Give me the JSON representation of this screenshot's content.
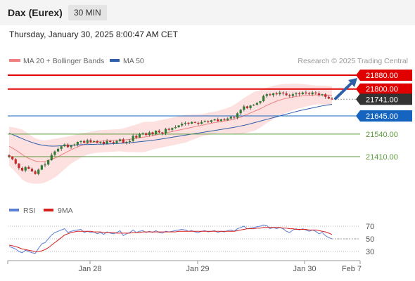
{
  "header": {
    "title": "Dax (Eurex)",
    "timeframe": "30 MIN",
    "datetime": "Thursday, January 30, 2025 8:00:47 AM CET"
  },
  "legend": {
    "ma20_label": "MA 20 + Bollinger Bands",
    "ma50_label": "MA 50",
    "watermark": "Research © 2025 Trading Central"
  },
  "rsi_legend": {
    "rsi_label": "RSI",
    "ma_label": "9MA"
  },
  "colors": {
    "bull": "#2e7d32",
    "bear": "#c62828",
    "ma20": "#f08080",
    "ma50": "#2e5fa8",
    "resistance": "#e00000",
    "pivot": "#1565c0",
    "support": "#5a9a3a",
    "current": "#333333",
    "rsi": "#5b7fd6",
    "rsi_ma": "#d62020",
    "band_fill": "#fde0e0"
  },
  "chart_data": [
    {
      "type": "candlestick",
      "title": "",
      "y_range": [
        21330,
        21910
      ],
      "x_ticks": [
        "Jan 28",
        "Jan 29",
        "Jan 30",
        "Feb 7"
      ],
      "levels": [
        {
          "name": "resistance 2",
          "value": 21880.0,
          "label": "21880.00",
          "style": "red-box"
        },
        {
          "name": "resistance 1",
          "value": 21800.0,
          "label": "21800.00",
          "style": "red-box"
        },
        {
          "name": "last price",
          "value": 21741.0,
          "label": "21741.00",
          "style": "dark-box"
        },
        {
          "name": "pivot",
          "value": 21645.0,
          "label": "21645.00",
          "style": "blue-box"
        },
        {
          "name": "support 1",
          "value": 21540.0,
          "label": "21540.00",
          "style": "green-text"
        },
        {
          "name": "support 2",
          "value": 21410.0,
          "label": "21410.00",
          "style": "green-text"
        }
      ],
      "series": [
        {
          "name": "MA 20 + Bollinger Bands",
          "kind": "ma20"
        },
        {
          "name": "MA 50",
          "kind": "ma50"
        }
      ],
      "closes": [
        21410,
        21395,
        21370,
        21345,
        21330,
        21350,
        21340,
        21325,
        21310,
        21335,
        21360,
        21365,
        21390,
        21420,
        21440,
        21455,
        21470,
        21480,
        21465,
        21475,
        21480,
        21495,
        21500,
        21490,
        21505,
        21495,
        21500,
        21490,
        21495,
        21485,
        21500,
        21495,
        21490,
        21500,
        21510,
        21490,
        21495,
        21500,
        21530,
        21520,
        21540,
        21545,
        21535,
        21550,
        21540,
        21560,
        21550,
        21545,
        21570,
        21565,
        21575,
        21580,
        21590,
        21600,
        21605,
        21600,
        21610,
        21605,
        21600,
        21610,
        21615,
        21610,
        21620,
        21625,
        21615,
        21625,
        21620,
        21630,
        21640,
        21635,
        21660,
        21680,
        21700,
        21690,
        21705,
        21710,
        21720,
        21730,
        21760,
        21770,
        21765,
        21775,
        21770,
        21780,
        21775,
        21765,
        21760,
        21770,
        21775,
        21770,
        21780,
        21775,
        21770,
        21780,
        21775,
        21765,
        21770,
        21755,
        21745,
        21741
      ],
      "ma20": [
        21470,
        21460,
        21448,
        21436,
        21422,
        21410,
        21400,
        21392,
        21385,
        21382,
        21381,
        21383,
        21388,
        21395,
        21402,
        21410,
        21420,
        21430,
        21440,
        21450,
        21458,
        21466,
        21474,
        21480,
        21486,
        21490,
        21494,
        21497,
        21499,
        21500,
        21501,
        21502,
        21503,
        21504,
        21505,
        21506,
        21508,
        21510,
        21513,
        21516,
        21519,
        21522,
        21525,
        21528,
        21531,
        21535,
        21539,
        21543,
        21547,
        21551,
        21555,
        21559,
        21563,
        21567,
        21571,
        21575,
        21579,
        21583,
        21587,
        21591,
        21595,
        21599,
        21603,
        21606,
        21609,
        21612,
        21615,
        21618,
        21622,
        21626,
        21632,
        21638,
        21646,
        21654,
        21662,
        21670,
        21678,
        21686,
        21696,
        21706,
        21714,
        21722,
        21730,
        21736,
        21742,
        21746,
        21750,
        21754,
        21757,
        21759,
        21761,
        21763,
        21764,
        21765,
        21766,
        21766,
        21766,
        21765,
        21764,
        21763
      ],
      "ma50": [
        21545,
        21538,
        21530,
        21522,
        21514,
        21506,
        21499,
        21492,
        21486,
        21481,
        21477,
        21474,
        21472,
        21471,
        21471,
        21472,
        21473,
        21474,
        21475,
        21476,
        21477,
        21478,
        21479,
        21480,
        21480,
        21481,
        21481,
        21482,
        21482,
        21483,
        21483,
        21484,
        21485,
        21486,
        21487,
        21488,
        21489,
        21490,
        21492,
        21494,
        21496,
        21498,
        21500,
        21502,
        21504,
        21507,
        21510,
        21513,
        21516,
        21519,
        21522,
        21525,
        21528,
        21531,
        21534,
        21537,
        21540,
        21543,
        21546,
        21549,
        21552,
        21555,
        21558,
        21561,
        21564,
        21567,
        21570,
        21573,
        21576,
        21579,
        21583,
        21587,
        21591,
        21595,
        21600,
        21605,
        21610,
        21615,
        21620,
        21625,
        21630,
        21635,
        21640,
        21645,
        21650,
        21655,
        21660,
        21665,
        21670,
        21675,
        21679,
        21683,
        21687,
        21691,
        21695,
        21699,
        21703,
        21706,
        21709,
        21712
      ],
      "band_width": [
        70,
        75,
        80,
        85,
        90,
        90,
        88,
        85,
        82,
        80,
        78,
        76,
        74,
        72,
        70,
        66,
        62,
        58,
        54,
        50,
        48,
        46,
        44,
        42,
        40,
        40,
        40,
        40,
        40,
        40,
        40,
        40,
        40,
        40,
        40,
        42,
        44,
        46,
        48,
        50,
        52,
        54,
        54,
        52,
        50,
        50,
        50,
        50,
        50,
        50,
        50,
        50,
        50,
        50,
        50,
        48,
        46,
        44,
        42,
        40,
        40,
        40,
        40,
        40,
        40,
        42,
        44,
        46,
        48,
        52,
        56,
        60,
        64,
        66,
        68,
        70,
        70,
        68,
        66,
        64,
        62,
        60,
        58,
        56,
        54,
        52,
        50,
        48,
        46,
        44,
        42,
        40,
        38,
        36,
        34,
        34,
        34,
        34,
        34,
        34
      ],
      "projection": {
        "from": 21741,
        "to": 21880
      }
    },
    {
      "type": "line",
      "title": "",
      "y_range": [
        10,
        90
      ],
      "y_ticks": [
        70,
        50,
        30
      ],
      "series": [
        {
          "name": "RSI",
          "values": [
            38,
            36,
            34,
            30,
            28,
            32,
            30,
            28,
            27,
            35,
            42,
            44,
            50,
            56,
            60,
            62,
            64,
            66,
            60,
            62,
            63,
            64,
            65,
            60,
            62,
            60,
            61,
            58,
            60,
            57,
            61,
            59,
            58,
            60,
            63,
            55,
            58,
            60,
            64,
            60,
            62,
            63,
            60,
            62,
            60,
            63,
            60,
            59,
            62,
            61,
            62,
            63,
            64,
            65,
            64,
            62,
            63,
            61,
            60,
            62,
            63,
            61,
            62,
            63,
            60,
            62,
            61,
            63,
            64,
            62,
            66,
            68,
            70,
            66,
            67,
            68,
            69,
            70,
            72,
            71,
            66,
            68,
            66,
            68,
            66,
            62,
            60,
            64,
            66,
            64,
            66,
            64,
            62,
            64,
            62,
            58,
            60,
            55,
            52,
            50
          ]
        },
        {
          "name": "9MA",
          "values": [
            40,
            39,
            38,
            36,
            34,
            33,
            32,
            31,
            30,
            30,
            31,
            33,
            36,
            40,
            44,
            48,
            52,
            56,
            58,
            60,
            61,
            62,
            62,
            62,
            62,
            62,
            61,
            61,
            61,
            60,
            60,
            60,
            60,
            59,
            59,
            59,
            59,
            59,
            60,
            60,
            60,
            61,
            61,
            61,
            61,
            61,
            61,
            61,
            61,
            61,
            61,
            61,
            62,
            62,
            62,
            62,
            62,
            62,
            62,
            62,
            62,
            62,
            62,
            62,
            62,
            62,
            62,
            62,
            62,
            62,
            63,
            64,
            65,
            66,
            66,
            66,
            67,
            67,
            68,
            68,
            68,
            68,
            68,
            68,
            67,
            67,
            66,
            66,
            65,
            65,
            65,
            65,
            64,
            64,
            64,
            63,
            62,
            61,
            59,
            57
          ]
        }
      ]
    }
  ]
}
